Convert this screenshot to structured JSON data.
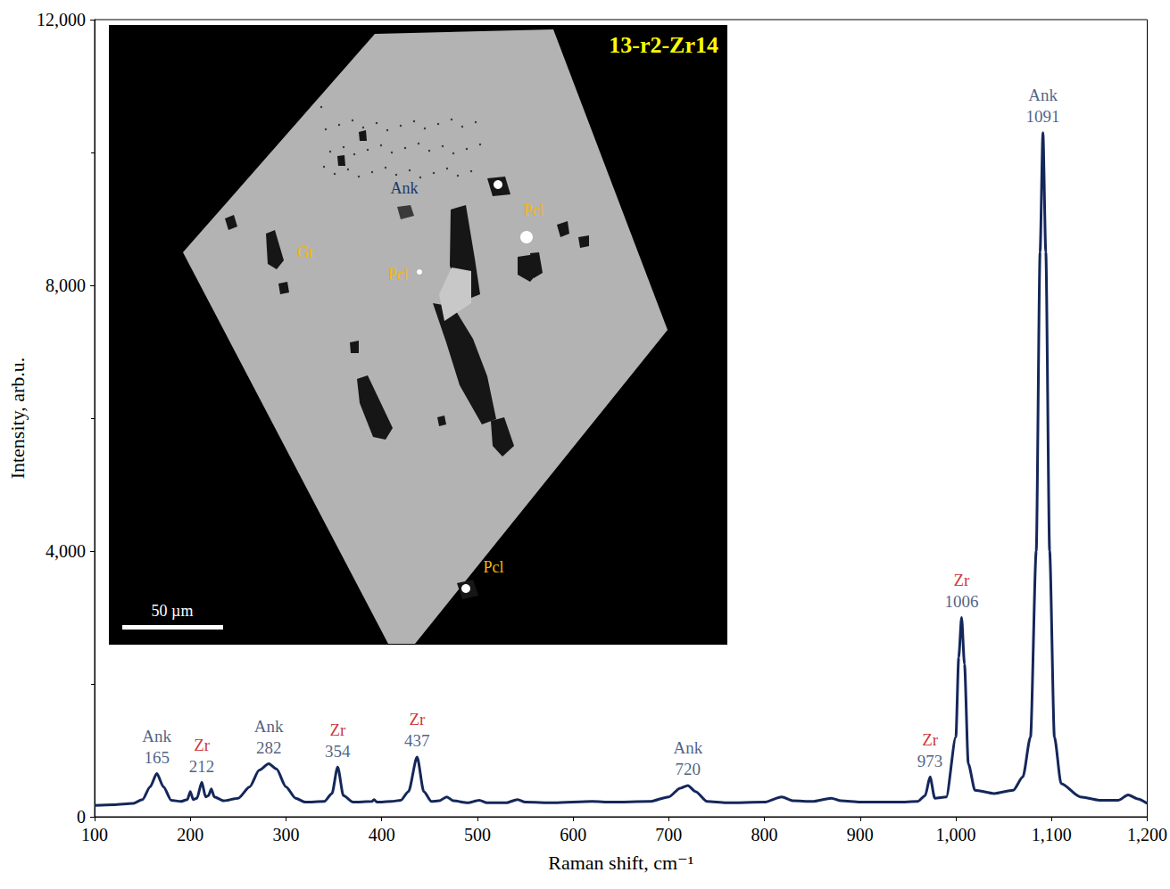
{
  "chart_data": {
    "type": "line",
    "x_label": "Raman shift, cm⁻¹",
    "y_label": "Intensity, arb.u.",
    "xlim": [
      100,
      1200
    ],
    "xticks": [
      100,
      200,
      300,
      400,
      500,
      600,
      700,
      800,
      900,
      1000,
      1100,
      1200
    ],
    "ylim": [
      0,
      12000
    ],
    "yticks": [
      0,
      4000,
      8000,
      12000
    ],
    "grid": false,
    "color": "#14275a",
    "x": [
      100,
      120,
      140,
      150,
      158,
      165,
      172,
      180,
      190,
      197,
      200,
      203,
      207,
      212,
      216,
      219,
      222,
      225,
      235,
      250,
      262,
      272,
      282,
      290,
      300,
      310,
      320,
      340,
      348,
      354,
      360,
      370,
      390,
      392,
      395,
      410,
      420,
      428,
      437,
      444,
      452,
      460,
      468,
      475,
      490,
      502,
      510,
      530,
      542,
      550,
      580,
      620,
      640,
      680,
      700,
      712,
      720,
      728,
      740,
      760,
      800,
      818,
      830,
      850,
      870,
      880,
      900,
      940,
      960,
      968,
      973,
      978,
      990,
      1000,
      1003,
      1006,
      1009,
      1013,
      1020,
      1040,
      1060,
      1070,
      1078,
      1084,
      1088,
      1091,
      1094,
      1098,
      1103,
      1110,
      1130,
      1150,
      1170,
      1180,
      1190,
      1200
    ],
    "values": [
      170,
      180,
      200,
      260,
      450,
      650,
      450,
      250,
      230,
      260,
      380,
      260,
      280,
      520,
      300,
      320,
      420,
      300,
      240,
      280,
      450,
      700,
      800,
      720,
      450,
      280,
      220,
      230,
      350,
      750,
      320,
      220,
      230,
      260,
      220,
      230,
      250,
      380,
      900,
      380,
      230,
      240,
      300,
      240,
      210,
      250,
      210,
      210,
      260,
      220,
      210,
      230,
      220,
      230,
      300,
      430,
      470,
      380,
      230,
      210,
      220,
      300,
      240,
      230,
      280,
      240,
      220,
      220,
      230,
      320,
      600,
      280,
      300,
      1200,
      2400,
      3000,
      2300,
      800,
      400,
      350,
      400,
      600,
      1200,
      4000,
      8500,
      10300,
      8500,
      4000,
      1200,
      500,
      300,
      250,
      250,
      330,
      270,
      200
    ],
    "annotations": [
      {
        "text": "Ank",
        "x": 165,
        "color": "#1f3864"
      },
      {
        "text": "Zr",
        "x": 212,
        "color": "#c00000"
      },
      {
        "text": "Ank",
        "x": 282,
        "color": "#1f3864"
      },
      {
        "text": "Zr",
        "x": 354,
        "color": "#c00000"
      },
      {
        "text": "Zr",
        "x": 437,
        "color": "#c00000"
      },
      {
        "text": "Ank",
        "x": 720,
        "color": "#1f3864"
      },
      {
        "text": "Zr",
        "x": 973,
        "color": "#c00000"
      },
      {
        "text": "Zr",
        "x": 1006,
        "color": "#c00000"
      },
      {
        "text": "Ank",
        "x": 1091,
        "color": "#1f3864"
      }
    ],
    "inset": {
      "title": "13-r2-Zr14",
      "labels": [
        {
          "text": "Ank",
          "color": "#1f3864"
        },
        {
          "text": "Gt",
          "color": "#f2b705"
        },
        {
          "text": "Pcl",
          "color": "#f2b705"
        },
        {
          "text": "Pcl",
          "color": "#f2b705"
        },
        {
          "text": "Pcl",
          "color": "#f2b705"
        }
      ],
      "scale_bar": "50 µm"
    }
  }
}
